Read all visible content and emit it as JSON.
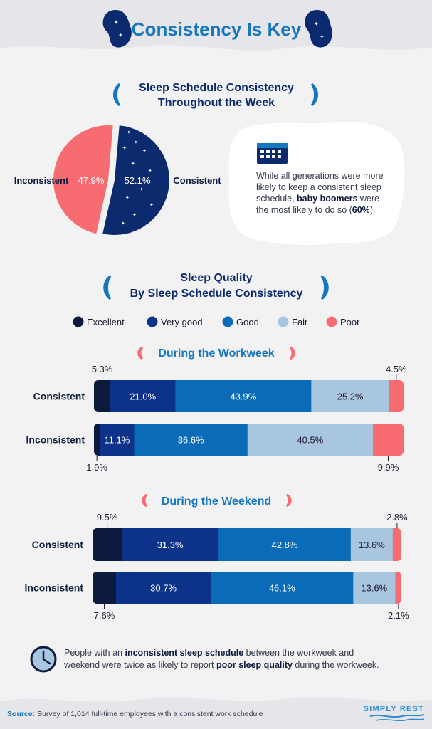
{
  "header": {
    "title": "Consistency Is Key"
  },
  "pie_section": {
    "title_line1": "Sleep Schedule Consistency",
    "title_line2": "Throughout the Week",
    "label_inconsistent": "Inconsistent",
    "label_consistent": "Consistent",
    "callout": {
      "icon": "calendar-icon",
      "line1": "While all generations were more",
      "line2": "likely to keep a consistent sleep",
      "line3_pre": "schedule, ",
      "line3_bold": "baby boomers",
      "line3_post": " were",
      "line4_pre": "the most likely to do so (",
      "line4_bold": "60%",
      "line4_post": ")."
    }
  },
  "quality_section": {
    "title_line1": "Sleep Quality",
    "title_line2": "By Sleep Schedule Consistency",
    "workweek_title": "During the Workweek",
    "weekend_title": "During the Weekend"
  },
  "colors": {
    "excellent": "#0b1a3d",
    "very_good": "#0d3289",
    "good": "#0a6cb8",
    "fair": "#a9c6e0",
    "poor": "#f66c70",
    "accent_title": "#1577bf",
    "navy": "#0b2b6e"
  },
  "footnote": {
    "icon": "clock-icon",
    "line1_pre": "People with an ",
    "line1_bold": "inconsistent sleep schedule",
    "line1_post": " between the workweek and",
    "line2_pre": "weekend were twice as likely to report ",
    "line2_bold": "poor sleep quality",
    "line2_post": " during the workweek."
  },
  "footer": {
    "source_label": "Source:",
    "source_text": " Survey of 1,014 full-time employees with a consistent work schedule",
    "brand": "SIMPLY REST"
  },
  "chart_data": [
    {
      "type": "pie",
      "title": "Sleep Schedule Consistency Throughout the Week",
      "labels": [
        "Consistent",
        "Inconsistent"
      ],
      "values": [
        52.1,
        47.9
      ],
      "value_labels": [
        "52.1%",
        "47.9%"
      ]
    },
    {
      "type": "bar",
      "orientation": "horizontal",
      "stacked": true,
      "title": "During the Workweek",
      "categories": [
        "Consistent",
        "Inconsistent"
      ],
      "series": [
        {
          "name": "Excellent",
          "values": [
            5.3,
            1.9
          ],
          "labels": [
            "5.3%",
            "1.9%"
          ]
        },
        {
          "name": "Very good",
          "values": [
            21.0,
            11.1
          ],
          "labels": [
            "21.0%",
            "11.1%"
          ]
        },
        {
          "name": "Good",
          "values": [
            43.9,
            36.6
          ],
          "labels": [
            "43.9%",
            "36.6%"
          ]
        },
        {
          "name": "Fair",
          "values": [
            25.2,
            40.5
          ],
          "labels": [
            "25.2%",
            "40.5%"
          ]
        },
        {
          "name": "Poor",
          "values": [
            4.5,
            9.9
          ],
          "labels": [
            "4.5%",
            "9.9%"
          ]
        }
      ],
      "legend": "top"
    },
    {
      "type": "bar",
      "orientation": "horizontal",
      "stacked": true,
      "title": "During the Weekend",
      "categories": [
        "Consistent",
        "Inconsistent"
      ],
      "series": [
        {
          "name": "Excellent",
          "values": [
            9.5,
            7.6
          ],
          "labels": [
            "9.5%",
            "7.6%"
          ]
        },
        {
          "name": "Very good",
          "values": [
            31.3,
            30.7
          ],
          "labels": [
            "31.3%",
            "30.7%"
          ]
        },
        {
          "name": "Good",
          "values": [
            42.8,
            46.1
          ],
          "labels": [
            "42.8%",
            "46.1%"
          ]
        },
        {
          "name": "Fair",
          "values": [
            13.6,
            13.6
          ],
          "labels": [
            "13.6%",
            "13.6%"
          ]
        },
        {
          "name": "Poor",
          "values": [
            2.8,
            2.1
          ],
          "labels": [
            "2.8%",
            "2.1%"
          ]
        }
      ],
      "legend": "top"
    }
  ]
}
